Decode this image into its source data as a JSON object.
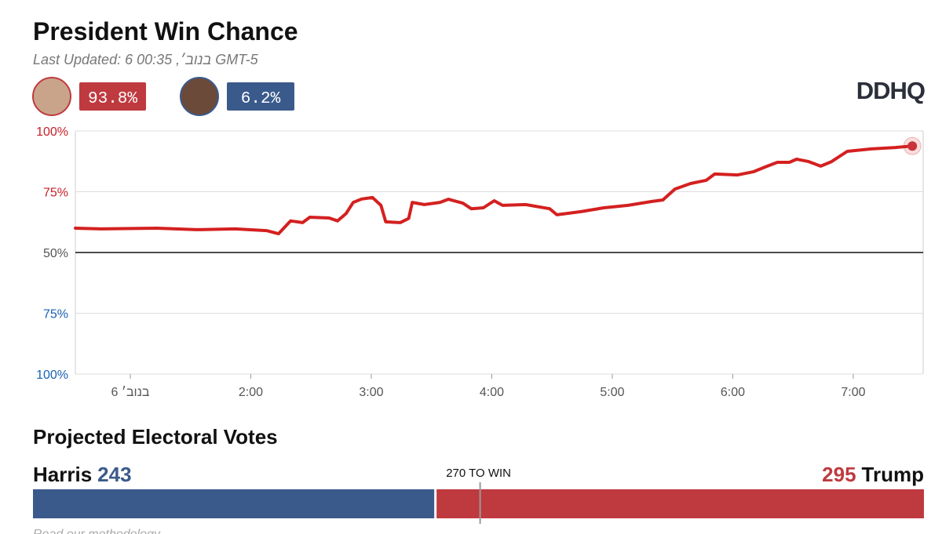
{
  "header": {
    "title": "President Win Chance",
    "last_updated": "Last Updated: 6 בנוב׳, 00:35 GMT-5",
    "logo": "DDHQ"
  },
  "candidates": [
    {
      "chance": "93.8%",
      "color": "#bf3a3f"
    },
    {
      "chance": "6.2%",
      "color": "#3b5a8c"
    }
  ],
  "chart_data": {
    "type": "line",
    "color": "#d42020",
    "x": [
      0.544,
      0.765,
      1.22,
      1.55,
      1.87,
      2.13,
      2.23,
      2.33,
      2.43,
      2.49,
      2.65,
      2.72,
      2.79,
      2.85,
      2.92,
      3.01,
      3.08,
      3.12,
      3.24,
      3.31,
      3.34,
      3.44,
      3.57,
      3.64,
      3.76,
      3.83,
      3.93,
      4.02,
      4.09,
      4.28,
      4.48,
      4.54,
      4.74,
      4.93,
      5.13,
      5.33,
      5.42,
      5.52,
      5.65,
      5.78,
      5.85,
      6.04,
      6.17,
      6.27,
      6.37,
      6.47,
      6.53,
      6.63,
      6.73,
      6.82,
      6.95,
      7.15,
      7.35,
      7.49
    ],
    "values": [
      60.0,
      59.7,
      60.0,
      59.4,
      59.7,
      59.0,
      57.7,
      63.0,
      62.3,
      64.5,
      64.2,
      63.0,
      66.0,
      70.6,
      72.0,
      72.6,
      69.4,
      62.6,
      62.3,
      64.0,
      70.6,
      69.7,
      70.6,
      71.9,
      70.3,
      68.0,
      68.4,
      71.3,
      69.4,
      69.7,
      68.0,
      65.5,
      66.8,
      68.4,
      69.4,
      71.0,
      71.6,
      76.1,
      78.4,
      79.7,
      82.3,
      81.9,
      83.2,
      85.2,
      87.1,
      87.1,
      88.4,
      87.4,
      85.5,
      87.4,
      91.6,
      92.6,
      93.2,
      93.8
    ],
    "xlim": [
      0.544,
      7.58
    ],
    "xticks": [
      {
        "value": 1,
        "label": "6 בנוב׳"
      },
      {
        "value": 2,
        "label": "2:00"
      },
      {
        "value": 3,
        "label": "3:00"
      },
      {
        "value": 4,
        "label": "4:00"
      },
      {
        "value": 5,
        "label": "5:00"
      },
      {
        "value": 6,
        "label": "6:00"
      },
      {
        "value": 7,
        "label": "7:00"
      }
    ],
    "ylim": [
      0,
      100
    ],
    "yticks": [
      {
        "value": 100,
        "label": "100%"
      },
      {
        "value": 75,
        "label": "75%"
      }
    ],
    "y_color": "#c8202a",
    "midline": {
      "value": 50,
      "label": "50%"
    },
    "y2lim": [
      100,
      0
    ],
    "y2ticks": [
      {
        "value": 75,
        "label": "75%"
      },
      {
        "value": 100,
        "label": "100%"
      }
    ],
    "y2_color": "#1a5fb4",
    "grid": true
  },
  "electoral": {
    "title": "Projected Electoral Votes",
    "harris": {
      "name": "Harris",
      "votes": 243,
      "color": "#3b5a8c"
    },
    "trump": {
      "name": "Trump",
      "votes": 295,
      "color": "#bf3a3f"
    },
    "threshold": {
      "value": 270,
      "label": "270 TO WIN"
    },
    "footer": "Read our methodology"
  }
}
